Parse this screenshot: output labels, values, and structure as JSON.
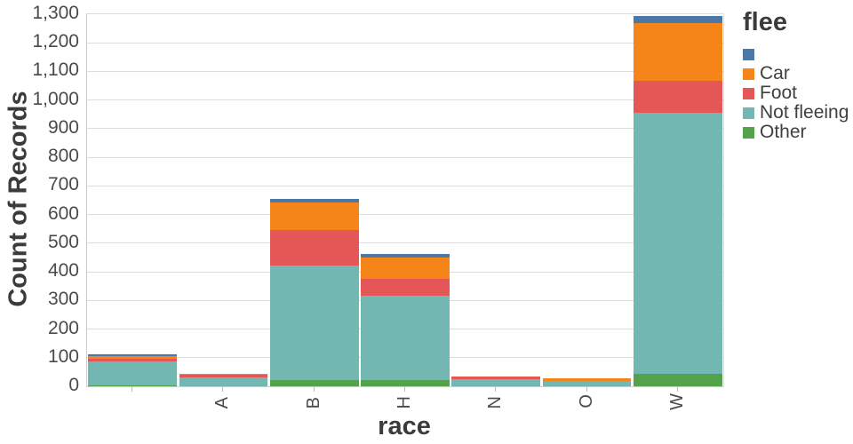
{
  "chart_data": {
    "type": "bar",
    "stacked": true,
    "xlabel": "race",
    "ylabel": "Count of Records",
    "categories": [
      "",
      "A",
      "B",
      "H",
      "N",
      "O",
      "W"
    ],
    "series": [
      {
        "name": "",
        "color": "#4c78a8",
        "values": [
          8,
          0,
          14,
          12,
          0,
          0,
          25
        ]
      },
      {
        "name": "Car",
        "color": "#f58518",
        "values": [
          8,
          3,
          96,
          75,
          0,
          8,
          203
        ]
      },
      {
        "name": "Foot",
        "color": "#e45756",
        "values": [
          8,
          8,
          124,
          60,
          9,
          0,
          112
        ]
      },
      {
        "name": "Not fleeing",
        "color": "#72b7b2",
        "values": [
          85,
          31,
          400,
          292,
          24,
          20,
          910
        ]
      },
      {
        "name": "Other",
        "color": "#54a24b",
        "values": [
          3,
          0,
          21,
          23,
          0,
          0,
          45
        ]
      }
    ],
    "stack_order_bottom_to_top": [
      "Other",
      "Not fleeing",
      "Foot",
      "Car",
      ""
    ],
    "ylim": [
      0,
      1300
    ],
    "ytick_step": 100,
    "ytick_labels": [
      "0",
      "100",
      "200",
      "300",
      "400",
      "500",
      "600",
      "700",
      "800",
      "900",
      "1,000",
      "1,100",
      "1,200",
      "1,300"
    ],
    "grid": true,
    "legend_title": "flee",
    "legend_position": "right",
    "colors": {
      "grid": "#dddddd",
      "axis_domain": "#cccccc",
      "tick": "#b9b9b9",
      "tick_label": "#4a4a4a",
      "axis_title": "#3b3b3b",
      "legend_label": "#404040",
      "background": "#ffffff"
    }
  }
}
